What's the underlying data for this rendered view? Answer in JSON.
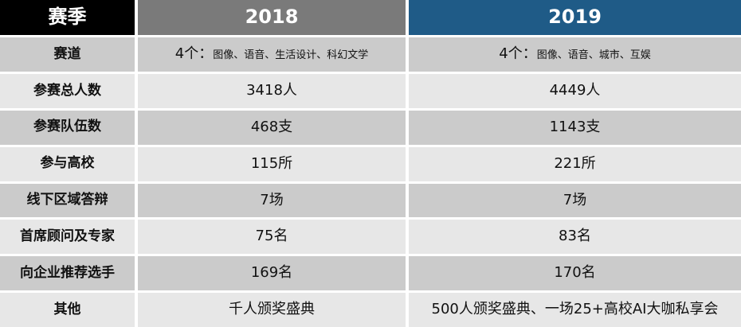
{
  "colors": {
    "header_black": "#000000",
    "header_gray": "#7A7A7A",
    "header_blue": "#1F5B87",
    "row_dark": "#CBCBCB",
    "row_light": "#E7E7E7",
    "gap_white": "#FFFFFF",
    "text_dark": "#111111",
    "text_white": "#FFFFFF"
  },
  "table": {
    "header": {
      "season": "赛季",
      "y2018": "2018",
      "y2019": "2019"
    },
    "rows": [
      {
        "label": "赛道",
        "c2018": {
          "lead": "4个：",
          "detail": "图像、语音、生活设计、科幻文学"
        },
        "c2019": {
          "lead": "4个：",
          "detail": "图像、语音、城市、互娱"
        }
      },
      {
        "label": "参赛总人数",
        "c2018": "3418人",
        "c2019": "4449人"
      },
      {
        "label": "参赛队伍数",
        "c2018": "468支",
        "c2019": "1143支"
      },
      {
        "label": "参与高校",
        "c2018": "115所",
        "c2019": "221所"
      },
      {
        "label": "线下区域答辩",
        "c2018": "7场",
        "c2019": "7场"
      },
      {
        "label": "首席顾问及专家",
        "c2018": "75名",
        "c2019": "83名"
      },
      {
        "label": "向企业推荐选手",
        "c2018": "169名",
        "c2019": "170名"
      },
      {
        "label": "其他",
        "c2018": "千人颁奖盛典",
        "c2019": "500人颁奖盛典、一场25+高校AI大咖私享会"
      }
    ]
  },
  "chart_data": {
    "type": "table",
    "title": "赛季对比 2018 vs 2019",
    "columns": [
      "赛季",
      "2018",
      "2019"
    ],
    "rows": [
      [
        "赛道",
        "4个：图像、语音、生活设计、科幻文学",
        "4个：图像、语音、城市、互娱"
      ],
      [
        "参赛总人数",
        "3418人",
        "4449人"
      ],
      [
        "参赛队伍数",
        "468支",
        "1143支"
      ],
      [
        "参与高校",
        "115所",
        "221所"
      ],
      [
        "线下区域答辩",
        "7场",
        "7场"
      ],
      [
        "首席顾问及专家",
        "75名",
        "83名"
      ],
      [
        "向企业推荐选手",
        "169名",
        "170名"
      ],
      [
        "其他",
        "千人颁奖盛典",
        "500人颁奖盛典、一场25+高校AI大咖私享会"
      ]
    ]
  }
}
